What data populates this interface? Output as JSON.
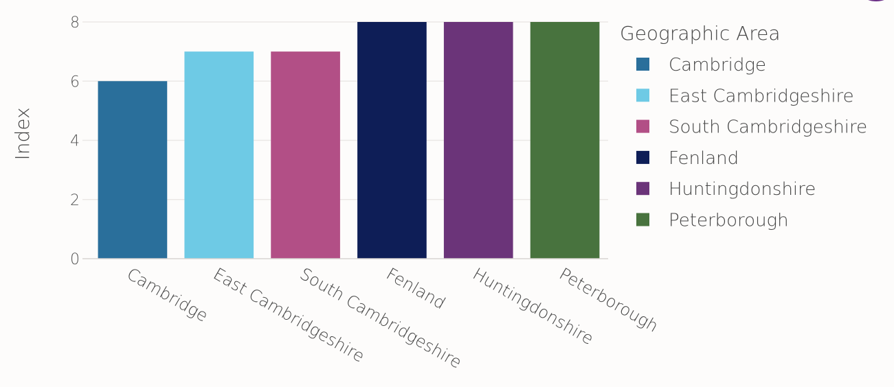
{
  "chart_data": {
    "type": "bar",
    "categories": [
      "Cambridge",
      "East Cambridgeshire",
      "South Cambridgeshire",
      "Fenland",
      "Huntingdonshire",
      "Peterborough"
    ],
    "values": [
      6,
      7,
      7,
      8,
      8,
      8
    ],
    "colors": [
      "#2a6f9b",
      "#6ecae5",
      "#b24f86",
      "#0e1e57",
      "#6b3479",
      "#48733e"
    ],
    "title": "",
    "xlabel": "",
    "ylabel": "Index",
    "ylim": [
      0,
      8
    ],
    "yticks": [
      "0",
      "2",
      "4",
      "6",
      "8"
    ],
    "ytick_values": [
      0,
      2,
      4,
      6,
      8
    ],
    "grid": true,
    "legend": {
      "title": "Geographic Area",
      "position": "right",
      "entries": [
        "Cambridge",
        "East Cambridgeshire",
        "South Cambridgeshire",
        "Fenland",
        "Huntingdonshire",
        "Peterborough"
      ]
    }
  }
}
